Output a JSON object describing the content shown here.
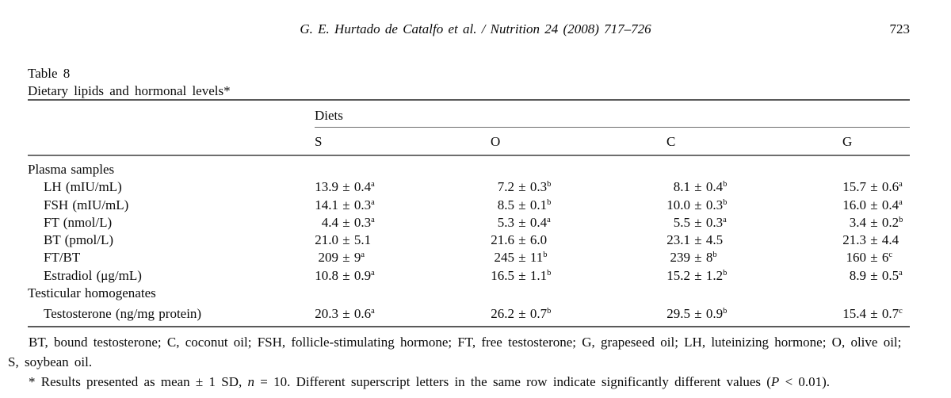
{
  "page": {
    "running_head": "G. E. Hurtado de Catalfo et al. / Nutrition 24 (2008) 717–726",
    "page_number": "723"
  },
  "table": {
    "label": "Table 8",
    "caption": "Dietary lipids and hormonal levels*",
    "group_header": "Diets",
    "pm_symbol": "±",
    "columns": [
      "S",
      "O",
      "C",
      "G"
    ],
    "rows": [
      {
        "type": "section",
        "label": "Plasma samples"
      },
      {
        "type": "data",
        "label": "LH (mIU/mL)",
        "values": [
          {
            "mean": "13.9",
            "sd": "0.4",
            "sup": "a"
          },
          {
            "mean": "7.2",
            "sd": "0.3",
            "sup": "b"
          },
          {
            "mean": "8.1",
            "sd": "0.4",
            "sup": "b"
          },
          {
            "mean": "15.7",
            "sd": "0.6",
            "sup": "a"
          }
        ]
      },
      {
        "type": "data",
        "label": "FSH (mIU/mL)",
        "values": [
          {
            "mean": "14.1",
            "sd": "0.3",
            "sup": "a"
          },
          {
            "mean": "8.5",
            "sd": "0.1",
            "sup": "b"
          },
          {
            "mean": "10.0",
            "sd": "0.3",
            "sup": "b"
          },
          {
            "mean": "16.0",
            "sd": "0.4",
            "sup": "a"
          }
        ]
      },
      {
        "type": "data",
        "label": "FT (nmol/L)",
        "values": [
          {
            "mean": "4.4",
            "sd": "0.3",
            "sup": "a"
          },
          {
            "mean": "5.3",
            "sd": "0.4",
            "sup": "a"
          },
          {
            "mean": "5.5",
            "sd": "0.3",
            "sup": "a"
          },
          {
            "mean": "3.4",
            "sd": "0.2",
            "sup": "b"
          }
        ]
      },
      {
        "type": "data",
        "label": "BT (pmol/L)",
        "values": [
          {
            "mean": "21.0",
            "sd": "5.1",
            "sup": ""
          },
          {
            "mean": "21.6",
            "sd": "6.0",
            "sup": ""
          },
          {
            "mean": "23.1",
            "sd": "4.5",
            "sup": ""
          },
          {
            "mean": "21.3",
            "sd": "4.4",
            "sup": ""
          }
        ]
      },
      {
        "type": "data",
        "label": "FT/BT",
        "values": [
          {
            "mean": "209",
            "sd": "9",
            "sup": "a"
          },
          {
            "mean": "245",
            "sd": "11",
            "sup": "b"
          },
          {
            "mean": "239",
            "sd": "8",
            "sup": "b"
          },
          {
            "mean": "160",
            "sd": "6",
            "sup": "c"
          }
        ]
      },
      {
        "type": "data",
        "label": "Estradiol (μg/mL)",
        "values": [
          {
            "mean": "10.8",
            "sd": "0.9",
            "sup": "a"
          },
          {
            "mean": "16.5",
            "sd": "1.1",
            "sup": "b"
          },
          {
            "mean": "15.2",
            "sd": "1.2",
            "sup": "b"
          },
          {
            "mean": "8.9",
            "sd": "0.5",
            "sup": "a"
          }
        ]
      },
      {
        "type": "section",
        "label": "Testicular homogenates"
      },
      {
        "type": "data",
        "label": "Testosterone (ng/mg protein)",
        "values": [
          {
            "mean": "20.3",
            "sd": "0.6",
            "sup": "a"
          },
          {
            "mean": "26.2",
            "sd": "0.7",
            "sup": "b"
          },
          {
            "mean": "29.5",
            "sd": "0.9",
            "sup": "b"
          },
          {
            "mean": "15.4",
            "sd": "0.7",
            "sup": "c"
          }
        ]
      }
    ]
  },
  "footnotes": {
    "abbrev_lines": [
      "BT, bound testosterone; C, coconut oil; FSH, follicle-stimulating hormone; FT, free testosterone; G, grapeseed oil; LH, luteinizing hormone; O, olive oil;",
      "S, soybean oil."
    ],
    "note_segments": [
      {
        "t": "* Results presented as mean ± 1 SD, ",
        "i": false
      },
      {
        "t": "n",
        "i": true
      },
      {
        "t": " = 10. Different superscript letters in the same row indicate significantly different values (",
        "i": false
      },
      {
        "t": "P",
        "i": true
      },
      {
        "t": " < 0.01).",
        "i": false
      }
    ]
  }
}
